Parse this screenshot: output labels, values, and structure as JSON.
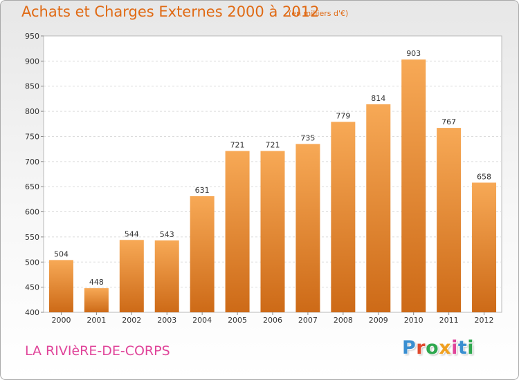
{
  "header": {
    "title": "Achats et Charges Externes 2000 à 2012",
    "unit": "(en milliers d'€)"
  },
  "footer": {
    "commune": "LA RIVIèRE-DE-CORPS",
    "logo_text": "Proxiti"
  },
  "colors": {
    "accent": "#e06a14",
    "commune_text": "#e0459a",
    "bar_top": "#f7a956",
    "bar_bottom": "#cd6a17",
    "logo_letters": [
      "#3a8fd1",
      "#e04a2e",
      "#2fa84f",
      "#f0a020",
      "#e0459a",
      "#3a8fd1",
      "#2fa84f"
    ]
  },
  "chart_data": {
    "type": "bar",
    "title": "Achats et Charges Externes 2000 à 2012",
    "categories": [
      "2000",
      "2001",
      "2002",
      "2003",
      "2004",
      "2005",
      "2006",
      "2007",
      "2008",
      "2009",
      "2010",
      "2011",
      "2012"
    ],
    "values": [
      504,
      448,
      544,
      543,
      631,
      721,
      721,
      735,
      779,
      814,
      903,
      767,
      658
    ],
    "ylim": [
      400,
      950
    ],
    "yticks": [
      400,
      450,
      500,
      550,
      600,
      650,
      700,
      750,
      800,
      850,
      900,
      950
    ],
    "grid": true,
    "legend": "none"
  }
}
